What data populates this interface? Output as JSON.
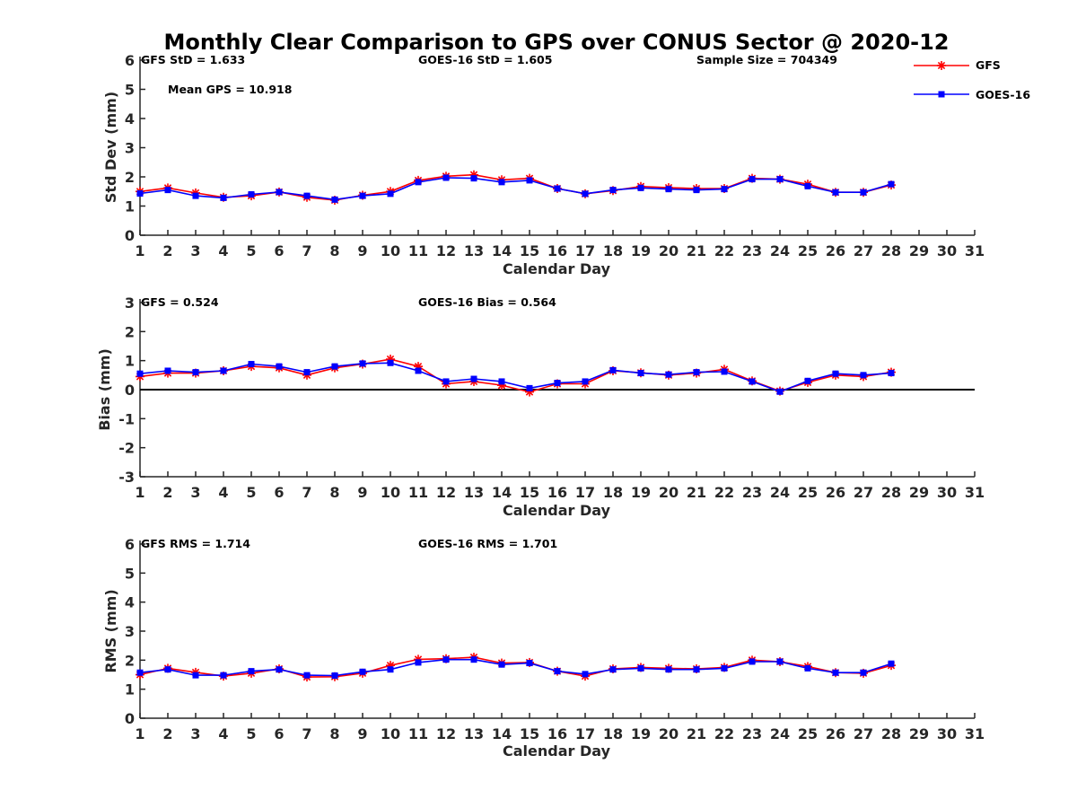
{
  "title": "Monthly Clear Comparison to GPS over CONUS Sector @ 2020-12",
  "legend": [
    {
      "name": "GFS",
      "color": "#ff0000",
      "marker": "asterisk"
    },
    {
      "name": "GOES-16",
      "color": "#0000ff",
      "marker": "square"
    }
  ],
  "chart_data": [
    {
      "type": "line",
      "xlabel": "Calendar Day",
      "ylabel": "Std Dev (mm)",
      "xlim": [
        1,
        31
      ],
      "ylim": [
        0,
        6
      ],
      "x": [
        1,
        2,
        3,
        4,
        5,
        6,
        7,
        8,
        9,
        10,
        11,
        12,
        13,
        14,
        15,
        16,
        17,
        18,
        19,
        20,
        21,
        22,
        23,
        24,
        25,
        26,
        27,
        28
      ],
      "annotations": [
        "GFS StD = 1.633",
        "GOES-16 StD = 1.605",
        "Sample Size = 704349",
        "Mean GPS = 10.918"
      ],
      "series": [
        {
          "name": "GFS",
          "values": [
            1.5,
            1.62,
            1.45,
            1.3,
            1.35,
            1.48,
            1.3,
            1.2,
            1.37,
            1.5,
            1.88,
            2.02,
            2.07,
            1.9,
            1.95,
            1.6,
            1.42,
            1.53,
            1.67,
            1.63,
            1.6,
            1.6,
            1.95,
            1.92,
            1.75,
            1.47,
            1.47,
            1.72
          ]
        },
        {
          "name": "GOES-16",
          "values": [
            1.43,
            1.55,
            1.35,
            1.28,
            1.4,
            1.48,
            1.35,
            1.22,
            1.35,
            1.42,
            1.82,
            1.97,
            1.95,
            1.82,
            1.88,
            1.6,
            1.42,
            1.55,
            1.62,
            1.58,
            1.55,
            1.58,
            1.92,
            1.92,
            1.68,
            1.47,
            1.47,
            1.75
          ]
        }
      ]
    },
    {
      "type": "line",
      "xlabel": "Calendar Day",
      "ylabel": "Bias (mm)",
      "xlim": [
        1,
        31
      ],
      "ylim": [
        -3,
        3
      ],
      "zero_line": true,
      "x": [
        1,
        2,
        3,
        4,
        5,
        6,
        7,
        8,
        9,
        10,
        11,
        12,
        13,
        14,
        15,
        16,
        17,
        18,
        19,
        20,
        21,
        22,
        23,
        24,
        25,
        26,
        27,
        28
      ],
      "annotations": [
        "GFS = 0.524",
        "GOES-16 Bias = 0.564"
      ],
      "series": [
        {
          "name": "GFS",
          "values": [
            0.45,
            0.57,
            0.57,
            0.65,
            0.8,
            0.75,
            0.5,
            0.75,
            0.88,
            1.05,
            0.8,
            0.2,
            0.28,
            0.15,
            -0.08,
            0.2,
            0.2,
            0.65,
            0.58,
            0.5,
            0.57,
            0.7,
            0.3,
            -0.05,
            0.25,
            0.5,
            0.45,
            0.6
          ]
        },
        {
          "name": "GOES-16",
          "values": [
            0.55,
            0.65,
            0.6,
            0.65,
            0.88,
            0.8,
            0.6,
            0.8,
            0.9,
            0.92,
            0.65,
            0.28,
            0.37,
            0.28,
            0.05,
            0.23,
            0.28,
            0.67,
            0.57,
            0.52,
            0.6,
            0.62,
            0.28,
            -0.07,
            0.3,
            0.55,
            0.5,
            0.57
          ]
        }
      ]
    },
    {
      "type": "line",
      "xlabel": "Calendar Day",
      "ylabel": "RMS (mm)",
      "xlim": [
        1,
        31
      ],
      "ylim": [
        0,
        6
      ],
      "x": [
        1,
        2,
        3,
        4,
        5,
        6,
        7,
        8,
        9,
        10,
        11,
        12,
        13,
        14,
        15,
        16,
        17,
        18,
        19,
        20,
        21,
        22,
        23,
        24,
        25,
        26,
        27,
        28
      ],
      "annotations": [
        "GFS RMS = 1.714",
        "GOES-16 RMS = 1.701"
      ],
      "series": [
        {
          "name": "GFS",
          "values": [
            1.5,
            1.72,
            1.58,
            1.45,
            1.55,
            1.7,
            1.42,
            1.43,
            1.55,
            1.82,
            2.03,
            2.05,
            2.1,
            1.9,
            1.92,
            1.62,
            1.45,
            1.7,
            1.75,
            1.72,
            1.7,
            1.75,
            2.0,
            1.95,
            1.78,
            1.57,
            1.55,
            1.82
          ]
        },
        {
          "name": "GOES-16",
          "values": [
            1.57,
            1.68,
            1.48,
            1.48,
            1.62,
            1.68,
            1.48,
            1.47,
            1.6,
            1.68,
            1.92,
            2.02,
            2.02,
            1.85,
            1.9,
            1.62,
            1.52,
            1.68,
            1.72,
            1.68,
            1.68,
            1.72,
            1.95,
            1.95,
            1.72,
            1.57,
            1.57,
            1.88
          ]
        }
      ]
    }
  ]
}
